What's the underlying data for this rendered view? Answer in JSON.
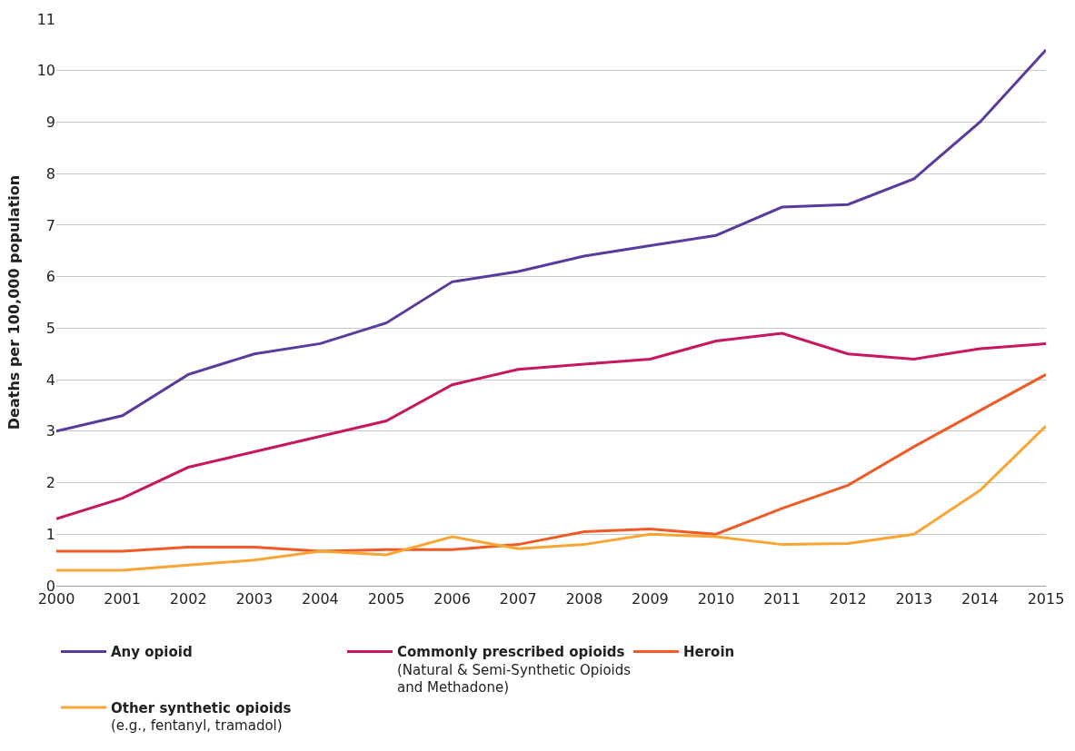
{
  "chart_data": {
    "type": "line",
    "ylabel": "Deaths per 100,000 population",
    "x": [
      2000,
      2001,
      2002,
      2003,
      2004,
      2005,
      2006,
      2007,
      2008,
      2009,
      2010,
      2011,
      2012,
      2013,
      2014,
      2015
    ],
    "series": [
      {
        "name": "Any opioid",
        "color": "#5b3a9e",
        "values": [
          3.0,
          3.3,
          4.1,
          4.5,
          4.7,
          5.1,
          5.9,
          6.1,
          6.4,
          6.6,
          6.8,
          7.35,
          7.4,
          7.9,
          9.0,
          10.4
        ]
      },
      {
        "name": "Commonly prescribed opioids\n(Natural & Semi-Synthetic Opioids\nand Methadone)",
        "color": "#c8175e",
        "values": [
          1.3,
          1.7,
          2.3,
          2.6,
          2.9,
          3.2,
          3.9,
          4.2,
          4.3,
          4.4,
          4.75,
          4.9,
          4.5,
          4.4,
          4.6,
          4.7
        ]
      },
      {
        "name": "Heroin",
        "color": "#f05a24",
        "values": [
          0.67,
          0.67,
          0.75,
          0.75,
          0.67,
          0.7,
          0.7,
          0.8,
          1.05,
          1.1,
          1.0,
          1.5,
          1.95,
          2.7,
          3.4,
          4.1
        ]
      },
      {
        "name": "Other synthetic opioids\n(e.g., fentanyl, tramadol)",
        "color": "#f9a533",
        "values": [
          0.3,
          0.3,
          0.4,
          0.5,
          0.67,
          0.6,
          0.95,
          0.72,
          0.8,
          1.0,
          0.95,
          0.8,
          0.82,
          1.0,
          1.85,
          3.1
        ]
      }
    ],
    "xlim": [
      2000,
      2015
    ],
    "xticks": [
      2000,
      2001,
      2002,
      2003,
      2004,
      2005,
      2006,
      2007,
      2008,
      2009,
      2010,
      2011,
      2012,
      2013,
      2014,
      2015
    ],
    "ylim": [
      0,
      11
    ],
    "yticks": [
      0,
      1,
      2,
      3,
      4,
      5,
      6,
      7,
      8,
      9,
      10,
      11
    ],
    "grid": "y",
    "legend": "bottom",
    "marker": "none",
    "line_style": "solid"
  }
}
